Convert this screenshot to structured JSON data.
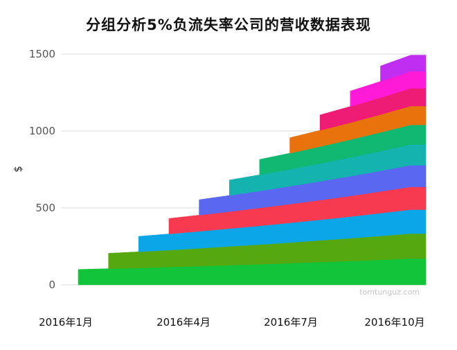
{
  "chart_data": {
    "type": "area",
    "title": "分组分析5%负流失率公司的营收数据表现",
    "xlabel": "",
    "ylabel": "$",
    "x_ticks": [
      "2016年1月",
      "2016年4月",
      "2016年7月",
      "2016年10月"
    ],
    "months": [
      "2016-01",
      "2016-02",
      "2016-03",
      "2016-04",
      "2016-05",
      "2016-06",
      "2016-07",
      "2016-08",
      "2016-09",
      "2016-10",
      "2016-11",
      "2016-12"
    ],
    "ylim": [
      0,
      1500
    ],
    "y_ticks": [
      0,
      500,
      1000,
      1500
    ],
    "grid": true,
    "legend": "none",
    "stacked": true,
    "series": [
      {
        "values": [
          100,
          105,
          110,
          116,
          122,
          128,
          134,
          141,
          148,
          155,
          163,
          171
        ],
        "color": "#12c43a"
      },
      {
        "values": [
          null,
          100,
          105,
          110,
          116,
          122,
          128,
          134,
          141,
          148,
          155,
          163
        ],
        "color": "#55a80f"
      },
      {
        "values": [
          null,
          null,
          100,
          105,
          110,
          116,
          122,
          128,
          134,
          141,
          148,
          155
        ],
        "color": "#0aa6e8"
      },
      {
        "values": [
          null,
          null,
          null,
          100,
          105,
          110,
          116,
          122,
          128,
          134,
          141,
          148
        ],
        "color": "#f73a4f"
      },
      {
        "values": [
          null,
          null,
          null,
          null,
          100,
          105,
          110,
          116,
          122,
          128,
          134,
          141
        ],
        "color": "#5a67f0"
      },
      {
        "values": [
          null,
          null,
          null,
          null,
          null,
          100,
          105,
          110,
          116,
          122,
          128,
          134
        ],
        "color": "#14b3b0"
      },
      {
        "values": [
          null,
          null,
          null,
          null,
          null,
          null,
          100,
          105,
          110,
          116,
          122,
          128
        ],
        "color": "#10b872"
      },
      {
        "values": [
          null,
          null,
          null,
          null,
          null,
          null,
          null,
          100,
          105,
          110,
          116,
          122
        ],
        "color": "#e8720c"
      },
      {
        "values": [
          null,
          null,
          null,
          null,
          null,
          null,
          null,
          null,
          100,
          105,
          110,
          116
        ],
        "color": "#ee1c74"
      },
      {
        "values": [
          null,
          null,
          null,
          null,
          null,
          null,
          null,
          null,
          null,
          100,
          105,
          110
        ],
        "color": "#ff1ad8"
      },
      {
        "values": [
          null,
          null,
          null,
          null,
          null,
          null,
          null,
          null,
          null,
          null,
          100,
          105
        ],
        "color": "#c02ef2"
      }
    ],
    "watermark": "tomtunguz.com"
  }
}
